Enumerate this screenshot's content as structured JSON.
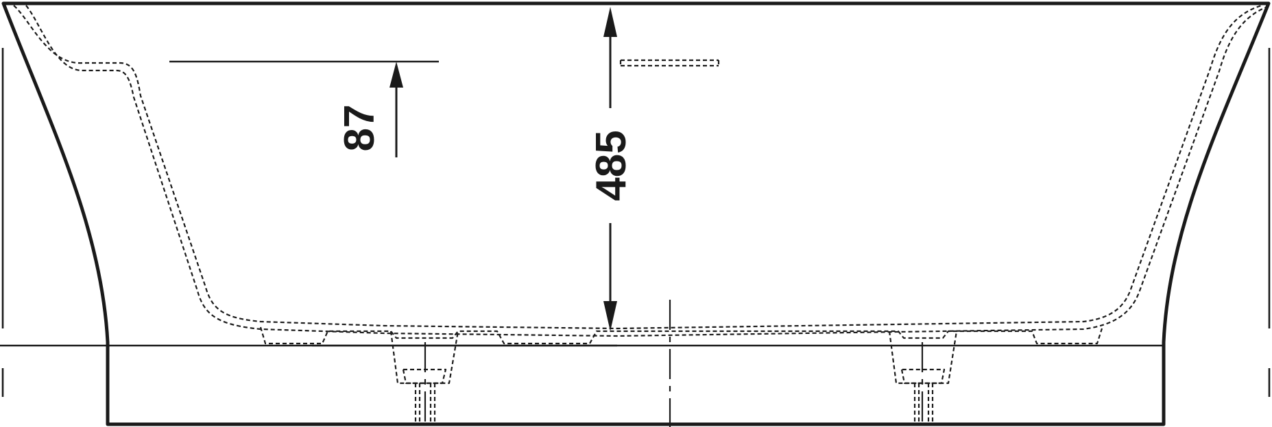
{
  "drawing": {
    "description_free": true,
    "dimensions": {
      "backrest_height": "87",
      "bath_depth": "485"
    }
  }
}
